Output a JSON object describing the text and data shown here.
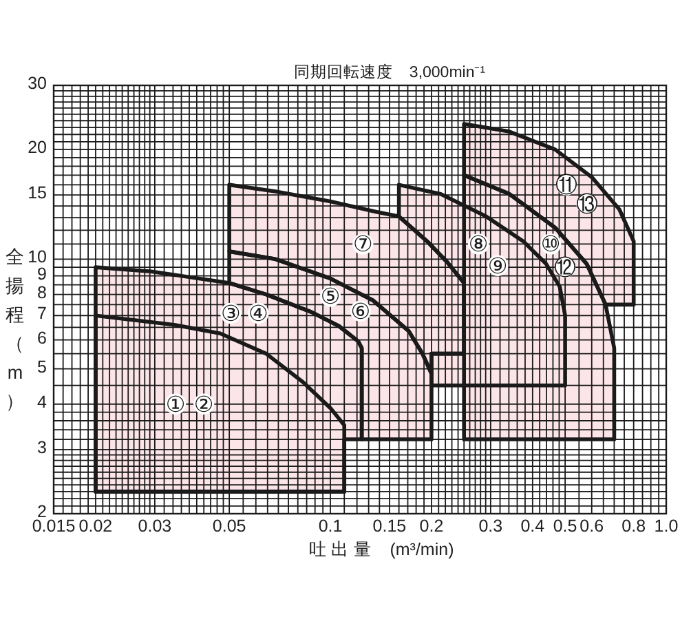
{
  "chart_data": {
    "type": "area",
    "title": "同期回転速度　3,000min⁻¹",
    "xlabel": "吐 出 量　(m³/min)",
    "ylabel": "全揚程（m）",
    "log": "xy",
    "grid": true,
    "xlim": [
      0.015,
      1
    ],
    "ylim": [
      2,
      30
    ],
    "xticks": [
      0.015,
      {
        "value": 0.016,
        "label": null
      },
      {
        "value": 0.017,
        "label": null
      },
      {
        "value": 0.018,
        "label": null
      },
      {
        "value": 0.019,
        "label": null
      },
      0.02,
      {
        "value": 0.021,
        "label": null
      },
      {
        "value": 0.022,
        "label": null
      },
      {
        "value": 0.023,
        "label": null
      },
      {
        "value": 0.024,
        "label": null
      },
      {
        "value": 0.025,
        "label": null
      },
      {
        "value": 0.026,
        "label": null
      },
      {
        "value": 0.027,
        "label": null
      },
      {
        "value": 0.028,
        "label": null
      },
      {
        "value": 0.029,
        "label": null
      },
      0.03,
      {
        "value": 0.032,
        "label": null
      },
      {
        "value": 0.034,
        "label": null
      },
      {
        "value": 0.036,
        "label": null
      },
      {
        "value": 0.038,
        "label": null
      },
      {
        "value": 0.04,
        "label": null
      },
      {
        "value": 0.042,
        "label": null
      },
      {
        "value": 0.044,
        "label": null
      },
      {
        "value": 0.046,
        "label": null
      },
      {
        "value": 0.048,
        "label": null
      },
      0.05,
      {
        "value": 0.055,
        "label": null
      },
      {
        "value": 0.06,
        "label": null
      },
      {
        "value": 0.065,
        "label": null
      },
      {
        "value": 0.07,
        "label": null
      },
      {
        "value": 0.075,
        "label": null
      },
      {
        "value": 0.08,
        "label": null
      },
      {
        "value": 0.085,
        "label": null
      },
      {
        "value": 0.09,
        "label": null
      },
      {
        "value": 0.095,
        "label": null
      },
      0.1,
      {
        "value": 0.11,
        "label": null
      },
      {
        "value": 0.12,
        "label": null
      },
      {
        "value": 0.13,
        "label": null
      },
      {
        "value": 0.14,
        "label": null
      },
      0.15,
      {
        "value": 0.16,
        "label": null
      },
      {
        "value": 0.17,
        "label": null
      },
      {
        "value": 0.18,
        "label": null
      },
      {
        "value": 0.19,
        "label": null
      },
      0.2,
      {
        "value": 0.21,
        "label": null
      },
      {
        "value": 0.22,
        "label": null
      },
      {
        "value": 0.23,
        "label": null
      },
      {
        "value": 0.24,
        "label": null
      },
      {
        "value": 0.25,
        "label": null
      },
      {
        "value": 0.26,
        "label": null
      },
      {
        "value": 0.27,
        "label": null
      },
      {
        "value": 0.28,
        "label": null
      },
      {
        "value": 0.29,
        "label": null
      },
      0.3,
      {
        "value": 0.32,
        "label": null
      },
      {
        "value": 0.34,
        "label": null
      },
      {
        "value": 0.36,
        "label": null
      },
      {
        "value": 0.38,
        "label": null
      },
      0.4,
      {
        "value": 0.42,
        "label": null
      },
      {
        "value": 0.44,
        "label": null
      },
      {
        "value": 0.46,
        "label": null
      },
      {
        "value": 0.48,
        "label": null
      },
      0.5,
      {
        "value": 0.55,
        "label": null
      },
      0.6,
      {
        "value": 0.65,
        "label": null
      },
      {
        "value": 0.7,
        "label": null
      },
      {
        "value": 0.75,
        "label": null
      },
      0.8,
      {
        "value": 0.85,
        "label": null
      },
      {
        "value": 0.9,
        "label": null
      },
      {
        "value": 0.95,
        "label": null
      },
      {
        "value": 1,
        "label": "1.0"
      }
    ],
    "yticks": [
      2,
      {
        "value": 2.1,
        "label": null
      },
      {
        "value": 2.2,
        "label": null
      },
      {
        "value": 2.3,
        "label": null
      },
      {
        "value": 2.4,
        "label": null
      },
      {
        "value": 2.5,
        "label": null
      },
      {
        "value": 2.6,
        "label": null
      },
      {
        "value": 2.7,
        "label": null
      },
      {
        "value": 2.8,
        "label": null
      },
      {
        "value": 2.9,
        "label": null
      },
      3,
      {
        "value": 3.2,
        "label": null
      },
      {
        "value": 3.4,
        "label": null
      },
      {
        "value": 3.6,
        "label": null
      },
      {
        "value": 3.8,
        "label": null
      },
      4,
      {
        "value": 4.5,
        "label": null
      },
      5,
      {
        "value": 5.5,
        "label": null
      },
      6,
      {
        "value": 6.5,
        "label": null
      },
      7,
      {
        "value": 7.5,
        "label": null
      },
      8,
      {
        "value": 8.5,
        "label": null
      },
      9,
      {
        "value": 9.5,
        "label": null
      },
      10,
      {
        "value": 11,
        "label": null
      },
      {
        "value": 12,
        "label": null
      },
      {
        "value": 13,
        "label": null
      },
      {
        "value": 14,
        "label": null
      },
      15,
      {
        "value": 16,
        "label": null
      },
      {
        "value": 17,
        "label": null
      },
      {
        "value": 18,
        "label": null
      },
      {
        "value": 19,
        "label": null
      },
      20,
      {
        "value": 21,
        "label": null
      },
      {
        "value": 22,
        "label": null
      },
      {
        "value": 23,
        "label": null
      },
      {
        "value": 24,
        "label": null
      },
      {
        "value": 25,
        "label": null
      },
      {
        "value": 26,
        "label": null
      },
      {
        "value": 27,
        "label": null
      },
      {
        "value": 28,
        "label": null
      },
      {
        "value": 29,
        "label": null
      },
      30
    ],
    "series": [
      {
        "color": "#fce5e8",
        "x": [
          0.02,
          0.02,
          0.0343,
          0.047,
          0.0644,
          0.0828,
          0.1,
          0.11,
          0.11
        ],
        "values": [
          2.3,
          7.0,
          6.6,
          6.25,
          5.5,
          4.6,
          3.9,
          3.5,
          2.3
        ]
      },
      {
        "color": "#fce5e8",
        "x": [
          0.02,
          0.02,
          0.0293,
          0.05,
          0.0644,
          0.088,
          0.106,
          0.121,
          0.124,
          0.124,
          0.11,
          0.11
        ],
        "values": [
          2.3,
          9.5,
          9.25,
          8.6,
          8.0,
          7.15,
          6.55,
          5.95,
          5.7,
          3.2,
          3.2,
          2.3
        ]
      },
      {
        "color": "#fce5e8",
        "x": [
          0.05,
          0.05,
          0.0686,
          0.1,
          0.134,
          0.171,
          0.188,
          0.2,
          0.2,
          0.124,
          0.124,
          0.121,
          0.106,
          0.088,
          0.0644
        ],
        "values": [
          8.6,
          10.5,
          10.0,
          8.85,
          7.7,
          6.35,
          5.5,
          4.85,
          3.2,
          3.2,
          5.7,
          5.95,
          6.55,
          7.15,
          8.0
        ]
      },
      {
        "color": "#fce5e8",
        "x": [
          0.05,
          0.05,
          0.0686,
          0.1,
          0.1365,
          0.16,
          0.194,
          0.223,
          0.25,
          0.25,
          0.2,
          0.2,
          0.188,
          0.171,
          0.134,
          0.1,
          0.0686
        ],
        "values": [
          10.5,
          16,
          15.35,
          14.4,
          13.5,
          13.1,
          11.2,
          9.8,
          8.6,
          5.5,
          5.5,
          4.85,
          5.5,
          6.35,
          7.7,
          8.85,
          10.0
        ]
      },
      {
        "color": "#fce5e8",
        "x": [
          0.16,
          0.16,
          0.213,
          0.291,
          0.375,
          0.439,
          0.482,
          0.5,
          0.5,
          0.2,
          0.2,
          0.25,
          0.25,
          0.223,
          0.194
        ],
        "values": [
          13.1,
          16,
          15.1,
          13.1,
          11.2,
          9.7,
          8.4,
          7.0,
          4.5,
          4.5,
          5.5,
          5.5,
          8.6,
          9.8,
          11.2
        ]
      },
      {
        "color": "#fce5e8",
        "x": [
          0.25,
          0.25,
          0.341,
          0.467,
          0.58,
          0.66,
          0.7,
          0.7
        ],
        "values": [
          3.2,
          17,
          15.1,
          12.2,
          9.7,
          7.5,
          5.7,
          3.2
        ]
      },
      {
        "color": "#fce5e8",
        "x": [
          0.25,
          0.25,
          0.341,
          0.467,
          0.6,
          0.725,
          0.8,
          0.8,
          0.66,
          0.58,
          0.467,
          0.341
        ],
        "values": [
          17,
          23.5,
          22.4,
          20,
          16.8,
          13.7,
          11.2,
          7.5,
          7.5,
          9.7,
          12.2,
          15.1
        ]
      }
    ],
    "annotations": [
      {
        "text": "①",
        "x": 0.0346,
        "y": 4.0
      },
      {
        "text": "②",
        "x": 0.042,
        "y": 4.0
      },
      {
        "text": "③",
        "x": 0.0505,
        "y": 7.1
      },
      {
        "text": "④",
        "x": 0.061,
        "y": 7.1
      },
      {
        "text": "⑤",
        "x": 0.1,
        "y": 7.9
      },
      {
        "text": "⑥",
        "x": 0.123,
        "y": 7.2
      },
      {
        "text": "⑦",
        "x": 0.125,
        "y": 11
      },
      {
        "text": "⑧",
        "x": 0.276,
        "y": 11
      },
      {
        "text": "⑨",
        "x": 0.315,
        "y": 9.6
      },
      {
        "text": "⑩",
        "x": 0.453,
        "y": 11
      },
      {
        "text": "⑪",
        "x": 0.505,
        "y": 16
      },
      {
        "text": "⑫",
        "x": 0.5,
        "y": 9.5
      },
      {
        "text": "⑬",
        "x": 0.58,
        "y": 14.2
      }
    ]
  }
}
